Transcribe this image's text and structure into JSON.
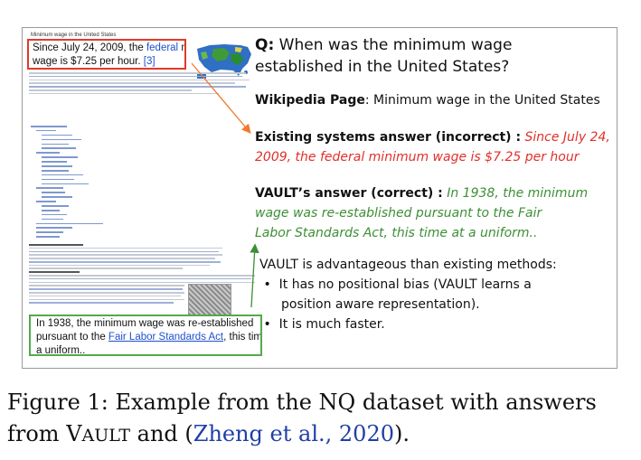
{
  "wiki": {
    "title": "Minimum wage in the United States",
    "box_top_pre": "Since July 24, 2009, the ",
    "box_top_link": "federal",
    "box_top_mid": " minimum",
    "box_top_line2": "wage is $7.25 per hour. ",
    "box_top_ref": "[3]",
    "box_bottom_line1": "In 1938, the minimum wage was re-established",
    "box_bottom_pre": "pursuant to the ",
    "box_bottom_link": "Fair Labor Standards Act",
    "box_bottom_post": ", this time at",
    "box_bottom_line3": "a uniform..",
    "colors": {
      "red_box": "#e03a2a",
      "green_box": "#54a94c"
    }
  },
  "question": {
    "label": "Q:",
    "text_line1": " When was the minimum wage",
    "text_line2": "established in the United States?"
  },
  "wikipedia_page": {
    "label": "Wikipedia Page",
    "value": ": Minimum wage in the United States"
  },
  "existing": {
    "label": "Existing systems answer (incorrect) :",
    "answer_line1": " Since July 24,",
    "answer_line2": "2009, the federal minimum wage is $7.25 per hour",
    "color": "#e0302a"
  },
  "vault": {
    "label": "VAULT’s answer (correct) :",
    "answer_line1": " In 1938, the minimum",
    "answer_line2": "wage was re-established pursuant to the Fair",
    "answer_line3": "Labor Standards Act, this time at a uniform..",
    "color": "#3c8f35"
  },
  "advantages": {
    "intro": "VAULT is advantageous than existing methods:",
    "bullet": "•",
    "item1_line1": "It has no positional bias (VAULT learns a",
    "item1_line2": "position aware representation).",
    "item2": "It is much faster."
  },
  "caption": {
    "prefix": "Figure 1: Example from the NQ dataset with answers",
    "line2_pre": "from V",
    "line2_sc": "AULT",
    "line2_mid": " and (",
    "citation": "Zheng et al., 2020",
    "line2_post": ")."
  }
}
